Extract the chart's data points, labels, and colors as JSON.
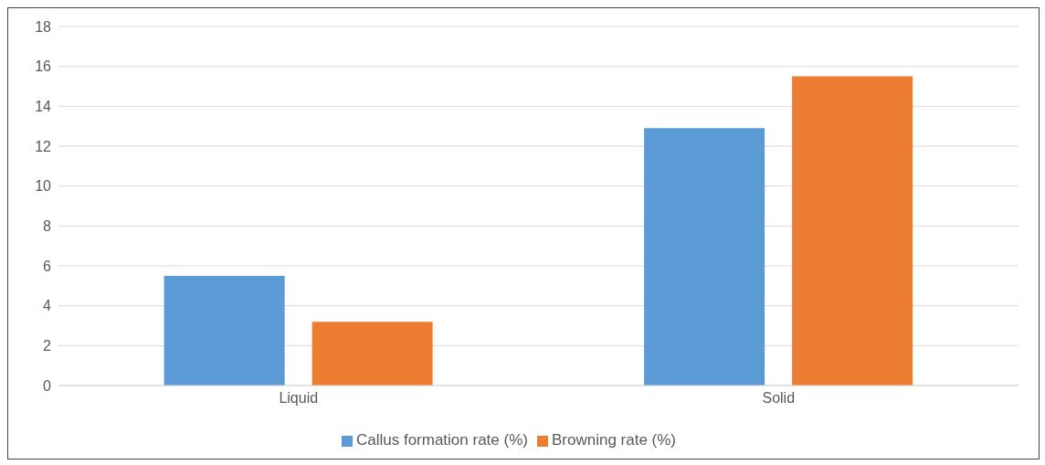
{
  "chart_data": {
    "type": "bar",
    "categories": [
      "Liquid",
      "Solid"
    ],
    "series": [
      {
        "name": "Callus formation rate (%)",
        "color": "#5b9bd5",
        "values": [
          5.5,
          12.9
        ]
      },
      {
        "name": "Browning rate (%)",
        "color": "#ed7d31",
        "values": [
          3.2,
          15.5
        ]
      }
    ],
    "ylim": [
      0,
      18
    ],
    "yticks": [
      0,
      2,
      4,
      6,
      8,
      10,
      12,
      14,
      16,
      18
    ],
    "grid": "y",
    "legend": "bottom"
  }
}
